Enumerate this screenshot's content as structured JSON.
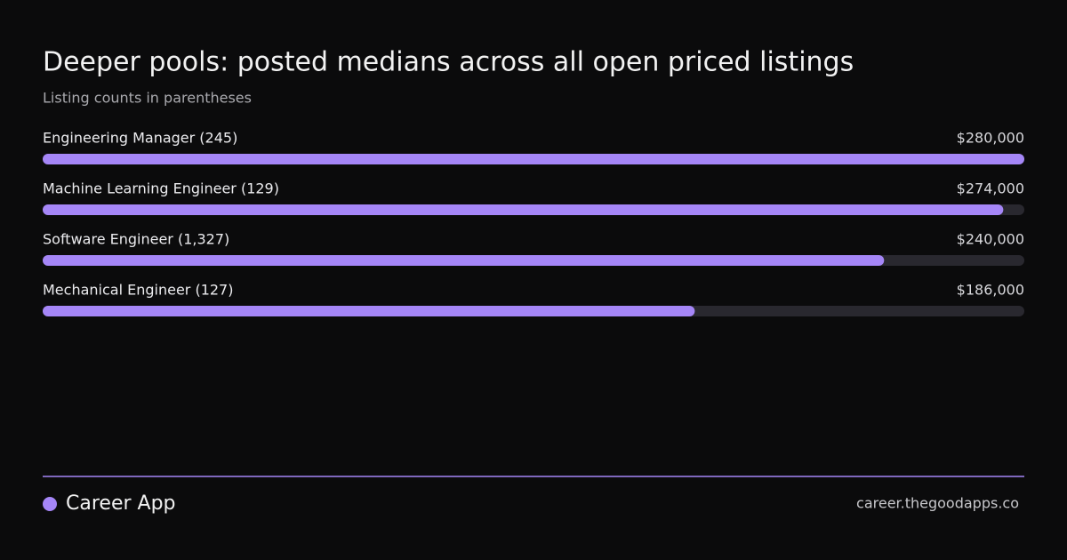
{
  "chart_data": {
    "type": "bar",
    "orientation": "horizontal",
    "title": "Deeper pools: posted medians across all open priced listings",
    "subtitle": "Listing counts in parentheses",
    "categories": [
      "Engineering Manager (245)",
      "Machine Learning Engineer (129)",
      "Software Engineer (1,327)",
      "Mechanical Engineer (127)"
    ],
    "values": [
      280000,
      274000,
      240000,
      186000
    ],
    "value_labels": [
      "$280,000",
      "$274,000",
      "$240,000",
      "$186,000"
    ],
    "color": "#a586f7",
    "track_color": "#29282f",
    "xlim": [
      0,
      280000
    ]
  },
  "footer": {
    "brand": "Career App",
    "url": "career.thegoodapps.co"
  }
}
